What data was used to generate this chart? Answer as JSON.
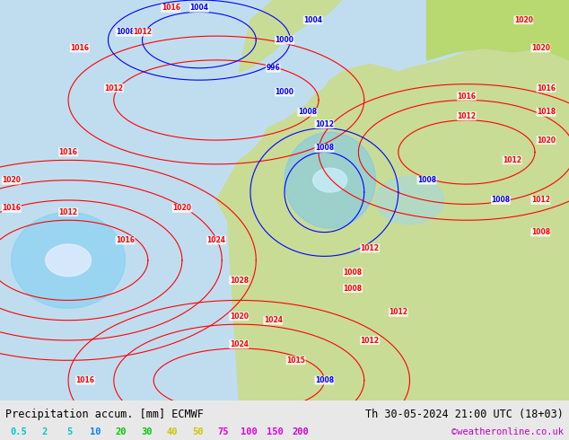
{
  "title_left": "Precipitation accum. [mm] ECMWF",
  "title_right": "Th 30-05-2024 21:00 UTC (18+03)",
  "watermark": "©weatheronline.co.uk",
  "legend_values": [
    "0.5",
    "2",
    "5",
    "10",
    "20",
    "30",
    "40",
    "50",
    "75",
    "100",
    "150",
    "200"
  ],
  "legend_colors": [
    "#a0f0f0",
    "#00bfff",
    "#0080ff",
    "#0000ff",
    "#00c800",
    "#00fa00",
    "#c8fa00",
    "#fafa00",
    "#fac800",
    "#fa6400",
    "#fa00fa",
    "#c800c8"
  ],
  "bg_color": "#e8e8e8",
  "map_bg": "#c8e6c8",
  "title_color": "#000000",
  "legend_text_color": "#000000",
  "fig_width": 6.34,
  "fig_height": 4.9,
  "dpi": 100
}
